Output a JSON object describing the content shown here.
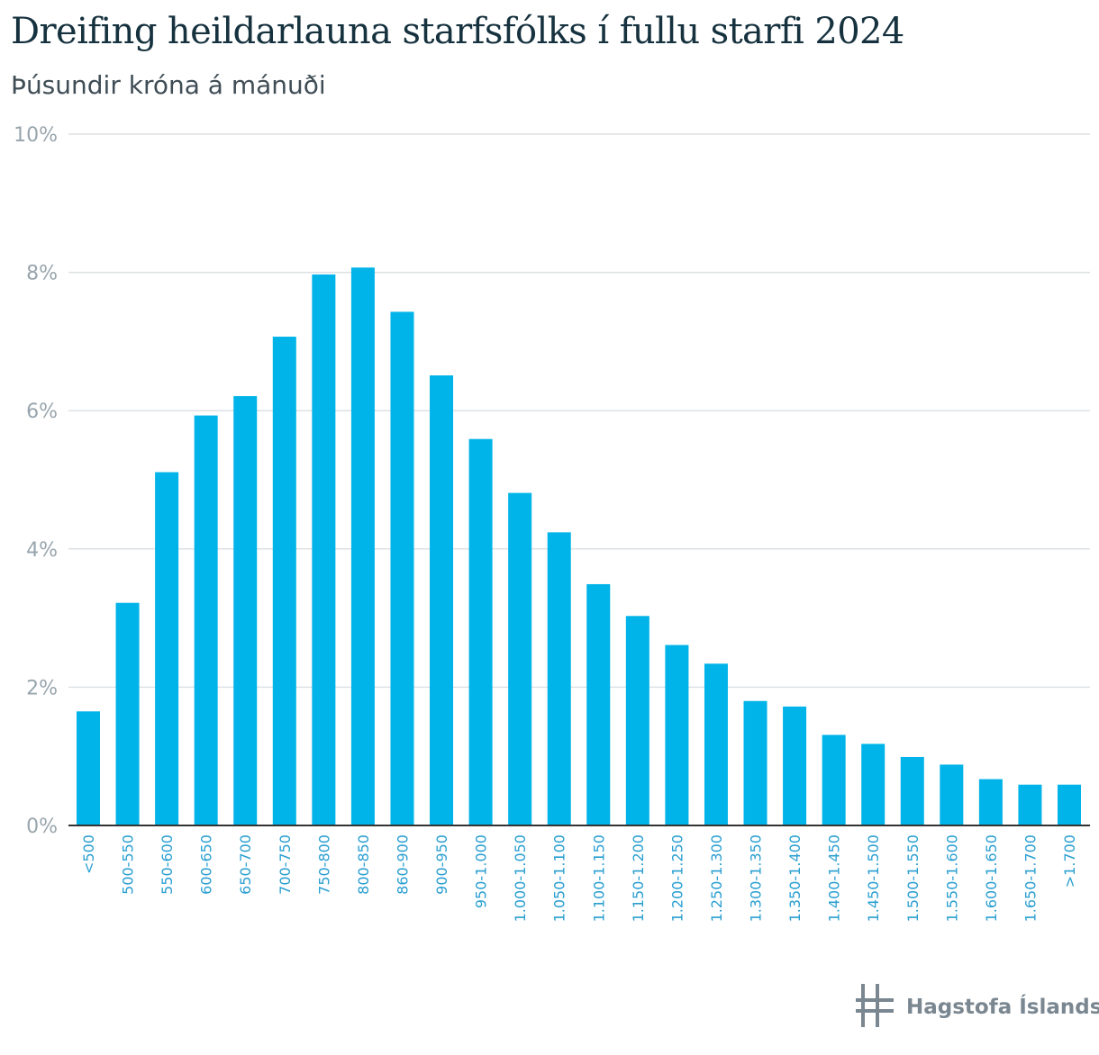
{
  "chart_data": {
    "type": "bar",
    "title": "Dreifing heildarlauna starfsfólks í fullu starfi 2024",
    "subtitle": "Þúsundir króna á mánuði",
    "categories": [
      "<500",
      "500-550",
      "550-600",
      "600-650",
      "650-700",
      "700-750",
      "750-800",
      "800-850",
      "860-900",
      "900-950",
      "950-1.000",
      "1.000-1.050",
      "1.050-1.100",
      "1.100-1.150",
      "1.150-1.200",
      "1.200-1.250",
      "1.250-1.300",
      "1.300-1.350",
      "1.350-1.400",
      "1.400-1.450",
      "1.450-1.500",
      "1.500-1.550",
      "1.550-1.600",
      "1.600-1.650",
      "1.650-1.700",
      ">1.700"
    ],
    "values": [
      1.65,
      3.22,
      5.11,
      5.93,
      6.21,
      7.07,
      7.97,
      8.07,
      7.43,
      6.51,
      5.59,
      4.81,
      4.24,
      3.49,
      3.03,
      2.61,
      2.34,
      1.8,
      1.72,
      1.31,
      1.18,
      0.99,
      0.88,
      0.67,
      0.59,
      0.59
    ],
    "yticks": [
      "0%",
      "2%",
      "4%",
      "6%",
      "8%",
      "10%"
    ],
    "ylim": [
      0,
      10
    ],
    "grid": true,
    "colors": {
      "bar": "#00b3e8",
      "grid": "#dde1e4",
      "axis": "#333333",
      "ytick": "#98a5ad",
      "xtick": "#2a9fd1"
    }
  },
  "logo": {
    "text": "Hagstofa Íslands",
    "icon": "hagstofa-logo-icon",
    "color": "#7a8791"
  }
}
